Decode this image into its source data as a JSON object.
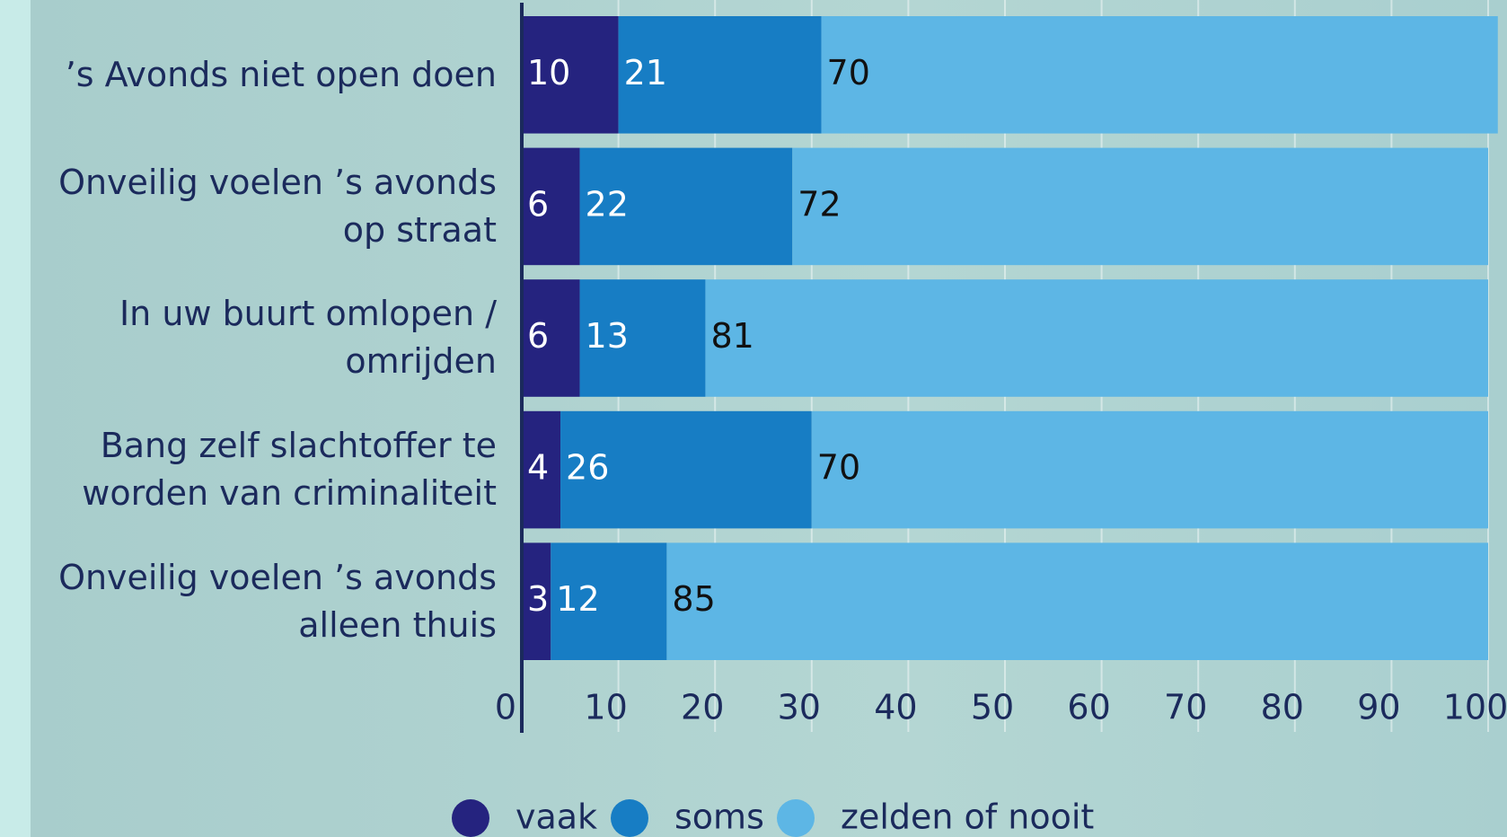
{
  "chart_data": {
    "type": "stacked-bar-horizontal",
    "categories": [
      "’s Avonds niet open doen",
      "Onveilig voelen ’s avonds op straat",
      "In uw buurt omlopen / omrijden",
      "Bang zelf slachtoffer te worden van criminaliteit",
      "Onveilig voelen ’s avonds alleen thuis"
    ],
    "series": [
      {
        "name": "vaak",
        "color": "#25237f",
        "values": [
          10,
          6,
          6,
          4,
          3
        ]
      },
      {
        "name": "soms",
        "color": "#177dc4",
        "values": [
          21,
          22,
          13,
          26,
          12
        ]
      },
      {
        "name": "zelden of nooit",
        "color": "#5db6e5",
        "values": [
          70,
          72,
          81,
          70,
          85
        ]
      }
    ],
    "xlim": [
      0,
      100
    ],
    "xticks": [
      0,
      10,
      20,
      30,
      40,
      50,
      60,
      70,
      80,
      90,
      100
    ],
    "grid": true
  }
}
